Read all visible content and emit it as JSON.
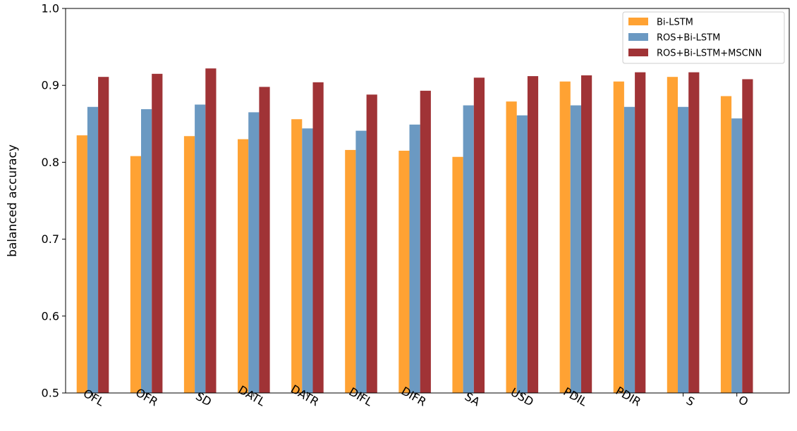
{
  "chart_data": {
    "type": "bar",
    "title": "",
    "xlabel": "",
    "ylabel": "balanced accuracy",
    "ylim": [
      0.5,
      1.0
    ],
    "yticks": [
      "0.5",
      "0.6",
      "0.7",
      "0.8",
      "0.9",
      "1.0"
    ],
    "grid": false,
    "legend_position": "top-right",
    "categories": [
      "OFL",
      "OFR",
      "SD",
      "DATL",
      "DATR",
      "DIFL",
      "DIFR",
      "SA",
      "USD",
      "PDIL",
      "PDIR",
      "S",
      "O"
    ],
    "series": [
      {
        "name": "Bi-LSTM",
        "color": "#ffa233",
        "values": [
          0.835,
          0.808,
          0.834,
          0.83,
          0.856,
          0.816,
          0.815,
          0.807,
          0.879,
          0.905,
          0.905,
          0.911,
          0.886
        ]
      },
      {
        "name": "ROS+Bi-LSTM",
        "color": "#6b99c2",
        "values": [
          0.872,
          0.869,
          0.875,
          0.865,
          0.844,
          0.841,
          0.849,
          0.874,
          0.861,
          0.874,
          0.872,
          0.872,
          0.857
        ]
      },
      {
        "name": "ROS+Bi-LSTM+MSCNN",
        "color": "#a03336",
        "values": [
          0.911,
          0.915,
          0.922,
          0.898,
          0.904,
          0.888,
          0.893,
          0.91,
          0.912,
          0.913,
          0.917,
          0.917,
          0.908
        ]
      }
    ]
  }
}
